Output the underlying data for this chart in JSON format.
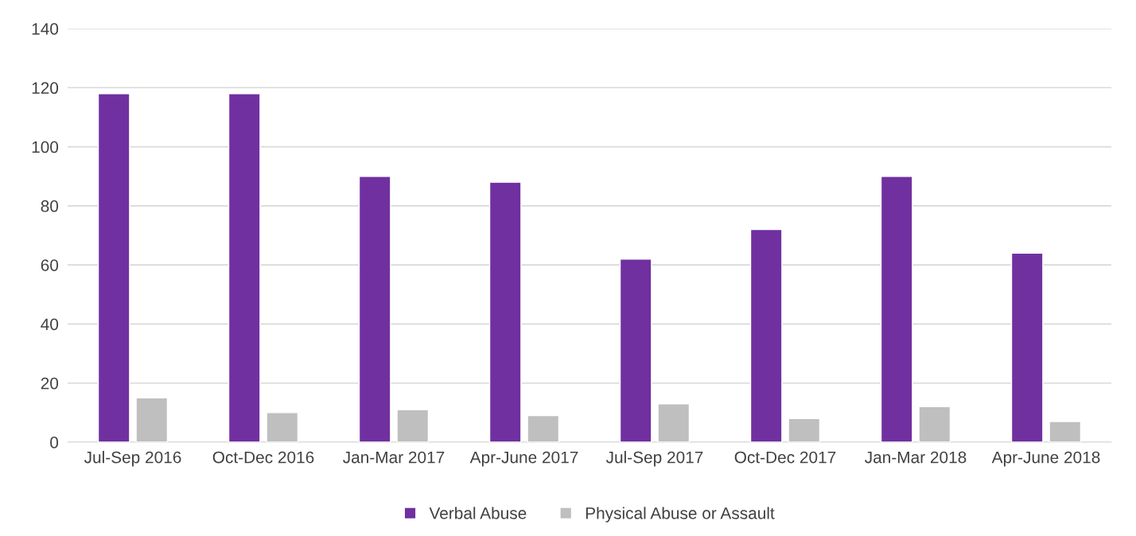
{
  "chart_data": {
    "type": "bar",
    "categories": [
      "Jul-Sep 2016",
      "Oct-Dec 2016",
      "Jan-Mar 2017",
      "Apr-June 2017",
      "Jul-Sep 2017",
      "Oct-Dec 2017",
      "Jan-Mar 2018",
      "Apr-June 2018"
    ],
    "series": [
      {
        "name": "Verbal Abuse",
        "color": "#7030a0",
        "values": [
          118,
          118,
          90,
          88,
          62,
          72,
          90,
          64
        ]
      },
      {
        "name": "Physical Abuse or Assault",
        "color": "#bfbfbf",
        "values": [
          15,
          10,
          11,
          9,
          13,
          8,
          12,
          7
        ]
      }
    ],
    "ylim": [
      0,
      140
    ],
    "yticks": [
      0,
      20,
      40,
      60,
      80,
      100,
      120,
      140
    ],
    "grid": "y",
    "legend": "bottom"
  }
}
